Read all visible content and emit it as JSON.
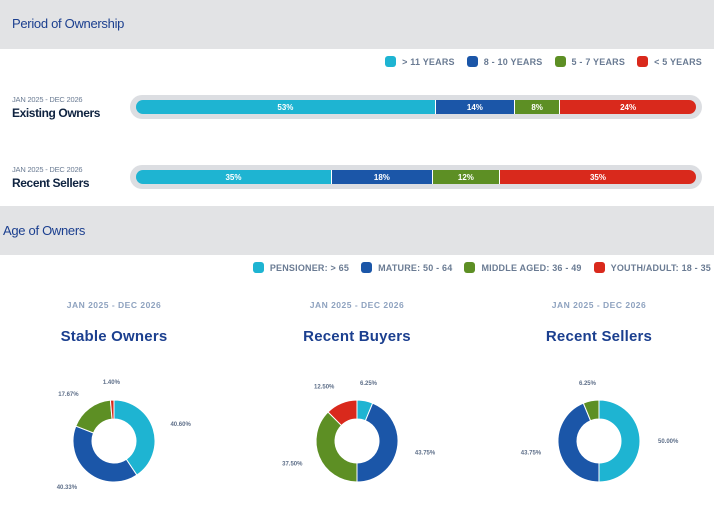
{
  "period_section": {
    "title": "Period of Ownership",
    "legend": [
      {
        "label": "> 11 YEARS",
        "color": "#1eb4d2"
      },
      {
        "label": "8 - 10 YEARS",
        "color": "#1b56a8"
      },
      {
        "label": "5 - 7 YEARS",
        "color": "#5d8f24"
      },
      {
        "label": "< 5 YEARS",
        "color": "#d9291c"
      }
    ]
  },
  "age_section": {
    "title": "Age of Owners",
    "legend": [
      {
        "label": "PENSIONER: > 65",
        "color": "#1eb4d2"
      },
      {
        "label": "MATURE: 50 - 64",
        "color": "#1b56a8"
      },
      {
        "label": "MIDDLE AGED: 36 - 49",
        "color": "#5d8f24"
      },
      {
        "label": "YOUTH/ADULT: 18 - 35",
        "color": "#d9291c"
      }
    ]
  },
  "chart_data": [
    {
      "type": "bar",
      "orientation": "horizontal-stacked",
      "categories": [
        "Existing Owners",
        "Recent Sellers"
      ],
      "periods": [
        "JAN 2025 - DEC 2026",
        "JAN 2025 - DEC 2026"
      ],
      "series": [
        {
          "name": "> 11 YEARS",
          "values": [
            53,
            35
          ],
          "labels": [
            "53%",
            "35%"
          ]
        },
        {
          "name": "8 - 10 YEARS",
          "values": [
            14,
            18
          ],
          "labels": [
            "14%",
            "18%"
          ]
        },
        {
          "name": "5 - 7 YEARS",
          "values": [
            8,
            12
          ],
          "labels": [
            "8%",
            "12%"
          ]
        },
        {
          "name": "< 5 YEARS",
          "values": [
            24,
            35
          ],
          "labels": [
            "24%",
            "35%"
          ]
        }
      ]
    },
    {
      "type": "pie",
      "style": "donut",
      "title": "Stable Owners",
      "period": "JAN 2025 - DEC 2026",
      "slices": [
        {
          "name": "PENSIONER: > 65",
          "value": 40.6,
          "label": "40.60%"
        },
        {
          "name": "MATURE: 50 - 64",
          "value": 40.33,
          "label": "40.33%"
        },
        {
          "name": "MIDDLE AGED: 36 - 49",
          "value": 17.67,
          "label": "17.67%"
        },
        {
          "name": "YOUTH/ADULT: 18 - 35",
          "value": 1.4,
          "label": "1.40%"
        }
      ]
    },
    {
      "type": "pie",
      "style": "donut",
      "title": "Recent Buyers",
      "period": "JAN 2025 - DEC 2026",
      "slices": [
        {
          "name": "PENSIONER: > 65",
          "value": 6.25,
          "label": "6.25%"
        },
        {
          "name": "MATURE: 50 - 64",
          "value": 43.75,
          "label": "43.75%"
        },
        {
          "name": "MIDDLE AGED: 36 - 49",
          "value": 37.5,
          "label": "37.50%"
        },
        {
          "name": "YOUTH/ADULT: 18 - 35",
          "value": 12.5,
          "label": "12.50%"
        }
      ]
    },
    {
      "type": "pie",
      "style": "donut",
      "title": "Recent Sellers",
      "period": "JAN 2025 - DEC 2026",
      "slices": [
        {
          "name": "PENSIONER: > 65",
          "value": 50.0,
          "label": "50.00%"
        },
        {
          "name": "MATURE: 50 - 64",
          "value": 43.75,
          "label": "43.75%"
        },
        {
          "name": "MIDDLE AGED: 36 - 49",
          "value": 6.25,
          "label": "6.25%"
        },
        {
          "name": "YOUTH/ADULT: 18 - 35",
          "value": 0,
          "label": ""
        }
      ]
    }
  ]
}
